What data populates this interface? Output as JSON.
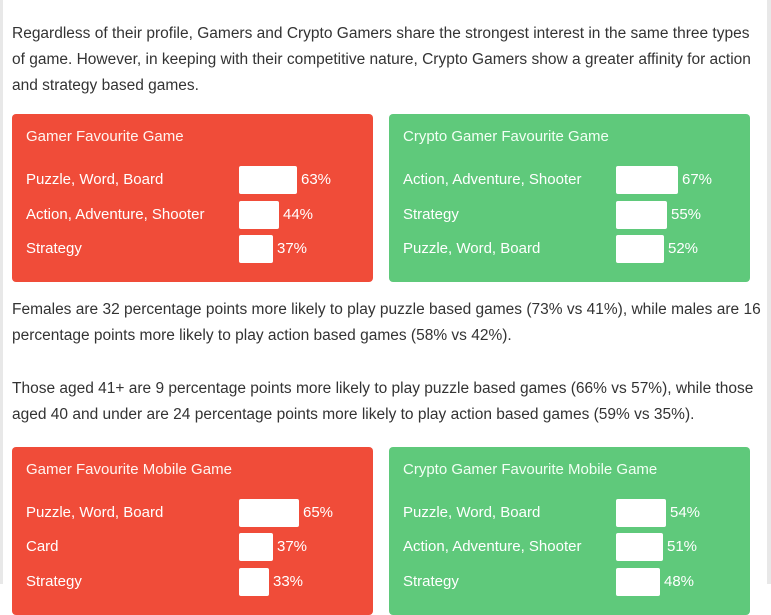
{
  "paragraphs": {
    "intro": "Regardless of their profile, Gamers and Crypto Gamers share the strongest interest in the same three types of game. However, in keeping with their competitive nature, Crypto Gamers show a greater affinity for action and strategy based games.",
    "gender": "Females are 32 percentage points more likely to play puzzle based games (73% vs 41%), while males are 16 percentage points more likely to play action based games (58% vs 42%).",
    "age": "Those aged 41+ are 9 percentage points more likely to play puzzle based games (66% vs 57%), while those aged 40 and under are 24 percentage points more likely to play action based games (59% vs 35%)."
  },
  "colors": {
    "gamer_card": "#f04c39",
    "crypto_card": "#5fc97b",
    "bar": "#ffffff"
  },
  "cards": [
    {
      "title": "Gamer Favourite Game",
      "rows": [
        {
          "label": "Puzzle, Word, Board",
          "value": 63,
          "pct": "63%"
        },
        {
          "label": "Action, Adventure, Shooter",
          "value": 44,
          "pct": "44%"
        },
        {
          "label": "Strategy",
          "value": 37,
          "pct": "37%"
        }
      ]
    },
    {
      "title": "Crypto Gamer Favourite Game",
      "rows": [
        {
          "label": "Action, Adventure, Shooter",
          "value": 67,
          "pct": "67%"
        },
        {
          "label": "Strategy",
          "value": 55,
          "pct": "55%"
        },
        {
          "label": "Puzzle, Word, Board",
          "value": 52,
          "pct": "52%"
        }
      ]
    },
    {
      "title": "Gamer Favourite Mobile Game",
      "rows": [
        {
          "label": "Puzzle, Word, Board",
          "value": 65,
          "pct": "65%"
        },
        {
          "label": "Card",
          "value": 37,
          "pct": "37%"
        },
        {
          "label": "Strategy",
          "value": 33,
          "pct": "33%"
        }
      ]
    },
    {
      "title": "Crypto Gamer Favourite Mobile Game",
      "rows": [
        {
          "label": "Puzzle, Word, Board",
          "value": 54,
          "pct": "54%"
        },
        {
          "label": "Action, Adventure, Shooter",
          "value": 51,
          "pct": "51%"
        },
        {
          "label": "Strategy",
          "value": 48,
          "pct": "48%"
        }
      ]
    }
  ]
}
